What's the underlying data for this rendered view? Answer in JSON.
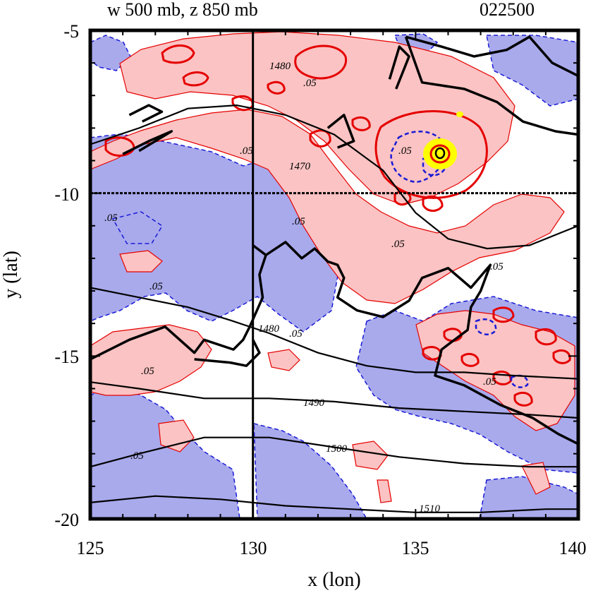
{
  "title": {
    "left": "w 500 mb, z 850 mb",
    "right": "022500"
  },
  "axes": {
    "xlabel": "x (lon)",
    "ylabel": "y (lat)",
    "xlim": [
      125,
      140
    ],
    "ylim": [
      -20,
      -5
    ],
    "xticks": [
      "125",
      "130",
      "135",
      "140"
    ],
    "yticks": [
      "-5",
      "-10",
      "-15",
      "-20"
    ],
    "crosshair": {
      "lon": 130,
      "lat": -10
    }
  },
  "colors": {
    "ascent_fill": "#fbc3c3",
    "descent_fill": "#a9aaec",
    "ascent_contour": "#e50000",
    "descent_contour": "#1a1ad6",
    "height_contour": "#000000",
    "max_core": "#ffff00"
  },
  "chart_data": {
    "type": "contour-map",
    "fields": [
      {
        "name": "w 500 mb",
        "contour_labels": [
          ".05",
          ".05",
          ".05",
          ".05",
          ".05",
          ".05",
          ".05",
          ".05",
          ".05",
          ".05",
          ".05",
          ".05"
        ]
      },
      {
        "name": "z 850 mb",
        "contour_labels": [
          "1470",
          "1480",
          "1480",
          "1490",
          "1500",
          "1510"
        ]
      }
    ],
    "height_contours": [
      {
        "label": "1470",
        "points": [
          [
            125,
            -8.5
          ],
          [
            126.5,
            -8.0
          ],
          [
            128,
            -7.4
          ],
          [
            129.5,
            -7.3
          ],
          [
            131,
            -7.6
          ],
          [
            132.5,
            -8.2
          ],
          [
            134,
            -9.3
          ],
          [
            135,
            -10.6
          ],
          [
            136,
            -11.4
          ],
          [
            137.2,
            -11.7
          ],
          [
            138.5,
            -11.6
          ],
          [
            139.5,
            -11.2
          ],
          [
            140,
            -11.0
          ]
        ]
      },
      {
        "label": "1480",
        "points": [
          [
            125,
            -12.9
          ],
          [
            126.5,
            -13.2
          ],
          [
            128,
            -13.5
          ],
          [
            129.3,
            -13.9
          ],
          [
            130.5,
            -14.3
          ],
          [
            132,
            -14.9
          ],
          [
            133.5,
            -15.3
          ],
          [
            135,
            -15.5
          ],
          [
            136.5,
            -15.5
          ],
          [
            138,
            -15.6
          ],
          [
            140,
            -15.7
          ]
        ]
      },
      {
        "label": "1490",
        "points": [
          [
            125,
            -15.8
          ],
          [
            126.5,
            -16.0
          ],
          [
            128.5,
            -16.3
          ],
          [
            130.5,
            -16.3
          ],
          [
            132.5,
            -16.4
          ],
          [
            134.5,
            -16.6
          ],
          [
            136.5,
            -16.7
          ],
          [
            138.5,
            -16.8
          ],
          [
            140,
            -16.9
          ]
        ]
      },
      {
        "label": "1500",
        "points": [
          [
            125,
            -18.4
          ],
          [
            126.5,
            -18.0
          ],
          [
            128.5,
            -17.5
          ],
          [
            130.5,
            -17.5
          ],
          [
            132.5,
            -17.8
          ],
          [
            134.5,
            -18.1
          ],
          [
            136.5,
            -18.3
          ],
          [
            138.5,
            -18.4
          ],
          [
            140,
            -18.4
          ]
        ]
      },
      {
        "label": "1510",
        "points": [
          [
            125,
            -19.5
          ],
          [
            127,
            -19.3
          ],
          [
            129,
            -19.4
          ],
          [
            131,
            -19.6
          ],
          [
            133,
            -19.7
          ],
          [
            135,
            -19.8
          ],
          [
            137,
            -19.8
          ],
          [
            139,
            -19.7
          ],
          [
            140,
            -19.7
          ]
        ]
      }
    ],
    "coastlines": [
      [
        [
          130,
          -11.6
        ],
        [
          130.4,
          -11.9
        ],
        [
          131,
          -11.5
        ],
        [
          131.5,
          -12.0
        ],
        [
          131.9,
          -11.7
        ],
        [
          132.3,
          -12.1
        ],
        [
          132.6,
          -12.2
        ],
        [
          132.8,
          -12.6
        ],
        [
          132.6,
          -13.2
        ],
        [
          133.2,
          -13.6
        ],
        [
          134,
          -13.8
        ],
        [
          134.8,
          -13.3
        ],
        [
          135.2,
          -12.6
        ],
        [
          136,
          -12.3
        ],
        [
          136.7,
          -12.9
        ],
        [
          137.3,
          -12.2
        ],
        [
          137,
          -13.0
        ],
        [
          136.7,
          -13.5
        ],
        [
          136.6,
          -14.2
        ],
        [
          135.8,
          -14.8
        ],
        [
          135.6,
          -15.6
        ],
        [
          136.5,
          -15.9
        ],
        [
          137.6,
          -16.5
        ],
        [
          138.6,
          -16.9
        ],
        [
          139.4,
          -17.4
        ],
        [
          140,
          -17.7
        ]
      ],
      [
        [
          125,
          -15.1
        ],
        [
          126.2,
          -14.5
        ],
        [
          127.3,
          -14.1
        ],
        [
          128.2,
          -14.9
        ],
        [
          128.5,
          -14.5
        ],
        [
          129.4,
          -14.8
        ],
        [
          129.7,
          -14.5
        ],
        [
          129.9,
          -14.1
        ],
        [
          130.3,
          -13.2
        ],
        [
          130.2,
          -12.5
        ],
        [
          130.4,
          -11.9
        ]
      ],
      [
        [
          128.2,
          -15.1
        ],
        [
          129.3,
          -15.2
        ],
        [
          129.8,
          -15.3
        ],
        [
          130.2,
          -14.9
        ],
        [
          130,
          -14.5
        ]
      ],
      [
        [
          134.7,
          -5.2
        ],
        [
          135.2,
          -6.6
        ],
        [
          136.5,
          -6.8
        ],
        [
          137.5,
          -7.2
        ],
        [
          138.3,
          -7.8
        ],
        [
          139.3,
          -8.1
        ],
        [
          140,
          -8.2
        ]
      ],
      [
        [
          134.7,
          -5.2
        ],
        [
          135.8,
          -5.5
        ],
        [
          136.8,
          -5.8
        ],
        [
          137.8,
          -5.6
        ],
        [
          138.5,
          -5.2
        ],
        [
          139.2,
          -6.0
        ],
        [
          140,
          -6.4
        ]
      ],
      [
        [
          134.2,
          -6.5
        ],
        [
          134.5,
          -5.5
        ],
        [
          134.8,
          -5.8
        ],
        [
          134.4,
          -6.8
        ]
      ],
      [
        [
          132.3,
          -8.0
        ],
        [
          132.8,
          -7.6
        ],
        [
          133.1,
          -8.4
        ],
        [
          132.6,
          -8.6
        ]
      ],
      [
        [
          126.0,
          -8.8
        ],
        [
          126.8,
          -8.4
        ],
        [
          127.5,
          -8.1
        ],
        [
          126.5,
          -8.7
        ]
      ],
      [
        [
          126.2,
          -7.6
        ],
        [
          126.8,
          -7.3
        ],
        [
          127.2,
          -7.5
        ],
        [
          126.6,
          -7.8
        ]
      ]
    ]
  }
}
